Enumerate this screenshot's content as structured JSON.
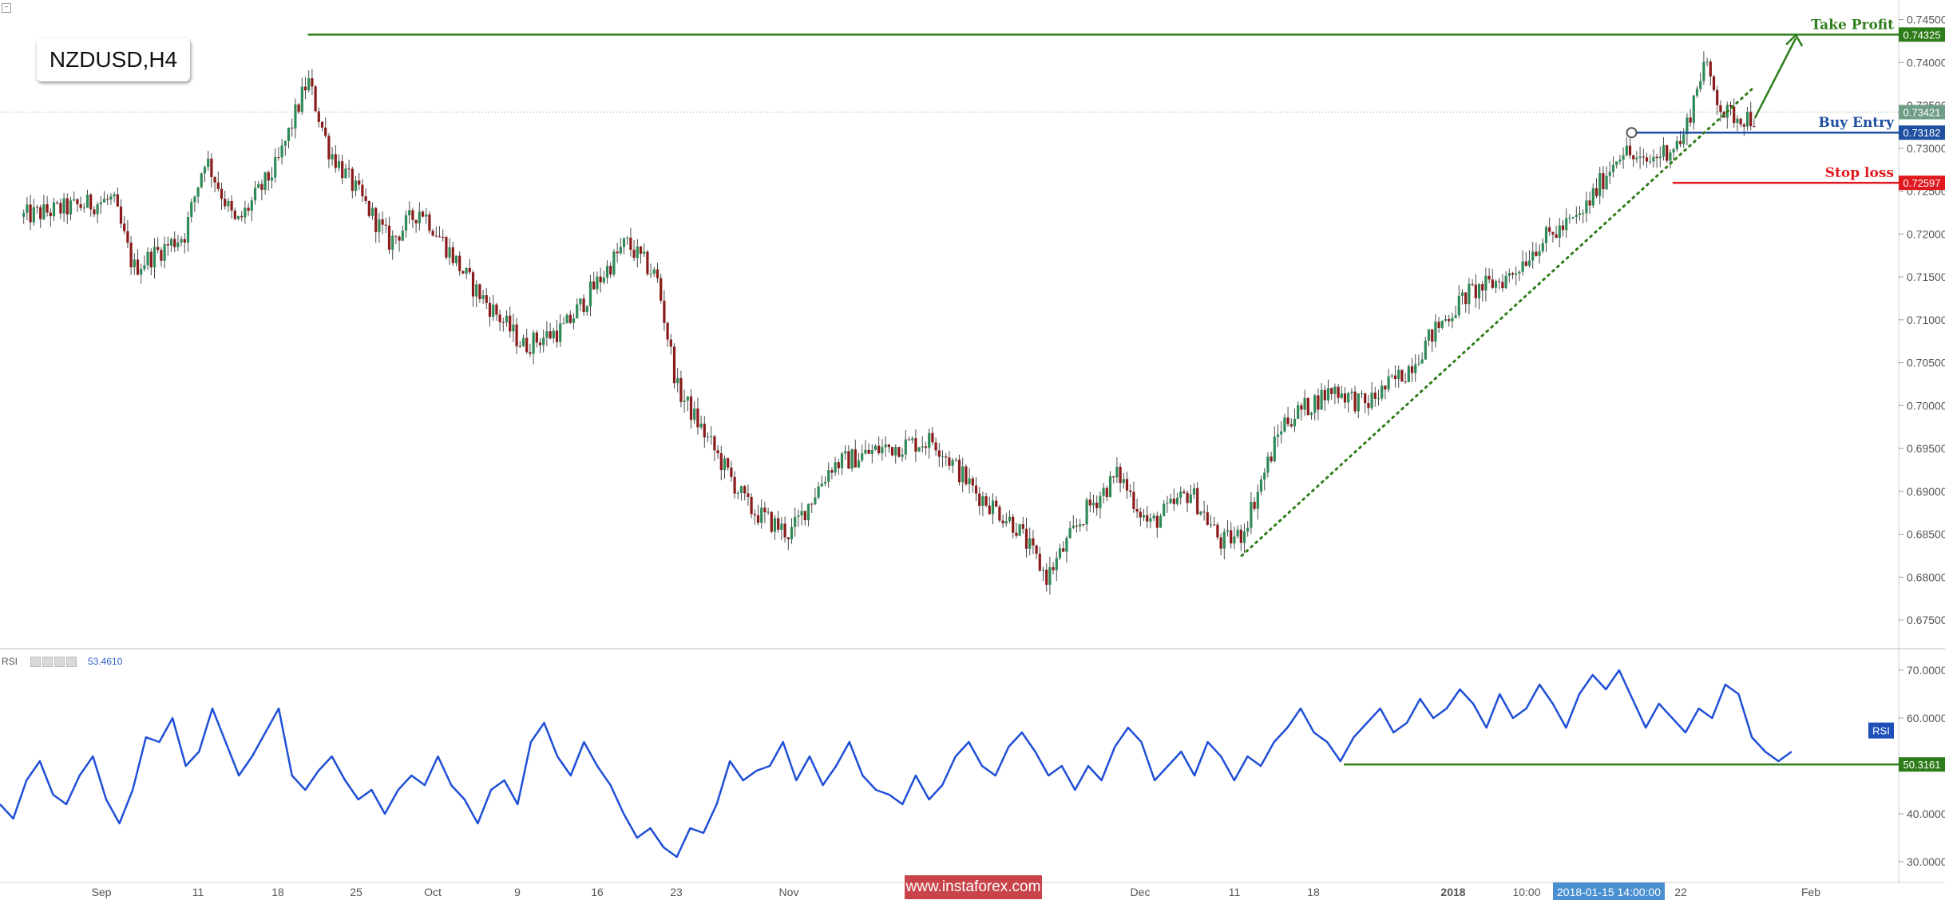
{
  "symbol_label": "NZDUSD,H4",
  "rsi_panel": {
    "label": "RSI",
    "current_value": "53.4610"
  },
  "watermark": "www.instaforex.com",
  "colors": {
    "up_candle": "#2e8b57",
    "down_candle": "#8b1a1a",
    "rsi_line": "#1f4fd6",
    "take_profit": "#2e7d1a",
    "buy_entry": "#1f4fa0",
    "stop_loss": "#e0191f",
    "trendline": "#2e7d1a"
  },
  "chart_data": [
    {
      "type": "candlestick",
      "title": "NZDUSD,H4",
      "ylim": [
        0.6725,
        0.7457
      ],
      "y_ticks": [
        "0.74500",
        "0.74000",
        "0.73500",
        "0.73000",
        "0.72500",
        "0.72000",
        "0.71500",
        "0.71000",
        "0.70500",
        "0.70000",
        "0.69500",
        "0.69000",
        "0.68500",
        "0.68000",
        "0.67500"
      ],
      "x_tick_labels": [
        "Sep",
        "11",
        "18",
        "25",
        "Oct",
        "9",
        "16",
        "23",
        "Nov",
        "Dec",
        "11",
        "18",
        "2018",
        "10:00",
        "2018-01-15 14:00:00",
        "22",
        "Feb"
      ],
      "grid": false,
      "price_path": [
        {
          "date": "2017-08-28",
          "price": 0.722
        },
        {
          "date": "2017-09-06",
          "price": 0.724
        },
        {
          "date": "2017-09-08",
          "price": 0.716
        },
        {
          "date": "2017-09-13",
          "price": 0.72
        },
        {
          "date": "2017-09-15",
          "price": 0.729
        },
        {
          "date": "2017-09-18",
          "price": 0.721
        },
        {
          "date": "2017-09-22",
          "price": 0.728
        },
        {
          "date": "2017-09-25",
          "price": 0.738
        },
        {
          "date": "2017-09-27",
          "price": 0.73
        },
        {
          "date": "2017-10-03",
          "price": 0.719
        },
        {
          "date": "2017-10-06",
          "price": 0.723
        },
        {
          "date": "2017-10-11",
          "price": 0.714
        },
        {
          "date": "2017-10-16",
          "price": 0.707
        },
        {
          "date": "2017-10-20",
          "price": 0.709
        },
        {
          "date": "2017-10-26",
          "price": 0.719
        },
        {
          "date": "2017-10-29",
          "price": 0.715
        },
        {
          "date": "2017-10-31",
          "price": 0.702
        },
        {
          "date": "2017-11-03",
          "price": 0.696
        },
        {
          "date": "2017-11-07",
          "price": 0.688
        },
        {
          "date": "2017-11-11",
          "price": 0.685
        },
        {
          "date": "2017-11-15",
          "price": 0.693
        },
        {
          "date": "2017-11-20",
          "price": 0.695
        },
        {
          "date": "2017-11-25",
          "price": 0.696
        },
        {
          "date": "2017-11-29",
          "price": 0.69
        },
        {
          "date": "2017-12-03",
          "price": 0.686
        },
        {
          "date": "2017-12-06",
          "price": 0.68
        },
        {
          "date": "2017-12-10",
          "price": 0.688
        },
        {
          "date": "2017-12-13",
          "price": 0.692
        },
        {
          "date": "2017-12-16",
          "price": 0.686
        },
        {
          "date": "2017-12-20",
          "price": 0.69
        },
        {
          "date": "2017-12-23",
          "price": 0.684
        },
        {
          "date": "2017-12-25",
          "price": 0.685
        },
        {
          "date": "2017-12-29",
          "price": 0.698
        },
        {
          "date": "2018-01-03",
          "price": 0.702
        },
        {
          "date": "2018-01-06",
          "price": 0.7
        },
        {
          "date": "2018-01-10",
          "price": 0.704
        },
        {
          "date": "2018-01-13",
          "price": 0.709
        },
        {
          "date": "2018-01-16",
          "price": 0.713
        },
        {
          "date": "2018-01-20",
          "price": 0.715
        },
        {
          "date": "2018-01-23",
          "price": 0.719
        },
        {
          "date": "2018-01-27",
          "price": 0.722
        },
        {
          "date": "2018-01-31",
          "price": 0.73
        },
        {
          "date": "2018-02-02",
          "price": 0.728
        },
        {
          "date": "2018-02-06",
          "price": 0.731
        },
        {
          "date": "2018-02-08",
          "price": 0.74
        },
        {
          "date": "2018-02-10",
          "price": 0.734
        },
        {
          "date": "2018-02-13",
          "price": 0.7335
        }
      ],
      "levels": [
        {
          "label": "Take Profit",
          "value": 0.74325,
          "value_text": "0.74325"
        },
        {
          "label": "Buy Entry",
          "value": 0.73182,
          "value_text": "0.73182"
        },
        {
          "label": "Stop loss",
          "value": 0.72597,
          "value_text": "0.72597"
        }
      ],
      "current_price": {
        "value": 0.73421,
        "value_text": "0.73421"
      },
      "trendline": {
        "from": {
          "date": "2017-12-25",
          "price": 0.6825
        },
        "to": {
          "date": "2018-02-13",
          "price": 0.7372
        }
      },
      "buy_entry_marker": {
        "date": "2018-02-01",
        "price": 0.73182
      },
      "take_profit_arrow": {
        "from": {
          "date": "2018-02-13",
          "price": 0.7335
        },
        "to": {
          "date": "2018-02-17",
          "price": 0.7432
        }
      }
    },
    {
      "type": "line",
      "title": "RSI",
      "ylim": [
        27,
        72
      ],
      "y_ticks": [
        "70.0000",
        "60.0000",
        "50.0000",
        "40.0000",
        "30.0000"
      ],
      "series": [
        {
          "name": "RSI",
          "values": [
            42,
            39,
            47,
            51,
            44,
            42,
            48,
            52,
            43,
            38,
            45,
            56,
            55,
            60,
            50,
            53,
            62,
            55,
            48,
            52,
            57,
            62,
            48,
            45,
            49,
            52,
            47,
            43,
            45,
            40,
            45,
            48,
            46,
            52,
            46,
            43,
            38,
            45,
            47,
            42,
            55,
            59,
            52,
            48,
            55,
            50,
            46,
            40,
            35,
            37,
            33,
            31,
            37,
            36,
            42,
            51,
            47,
            49,
            50,
            55,
            47,
            52,
            46,
            50,
            55,
            48,
            45,
            44,
            42,
            48,
            43,
            46,
            52,
            55,
            50,
            48,
            54,
            57,
            53,
            48,
            50,
            45,
            50,
            47,
            54,
            58,
            55,
            47,
            50,
            53,
            48,
            55,
            52,
            47,
            52,
            50,
            55,
            58,
            62,
            57,
            55,
            51,
            56,
            59,
            62,
            57,
            59,
            64,
            60,
            62,
            66,
            63,
            58,
            65,
            60,
            62,
            67,
            63,
            58,
            65,
            69,
            66,
            70,
            64,
            58,
            63,
            60,
            57,
            62,
            60,
            67,
            65,
            56,
            53,
            51,
            53
          ]
        }
      ],
      "threshold_line": {
        "value": 50.3161,
        "value_text": "50.3161"
      },
      "series_badge": "RSI"
    }
  ]
}
